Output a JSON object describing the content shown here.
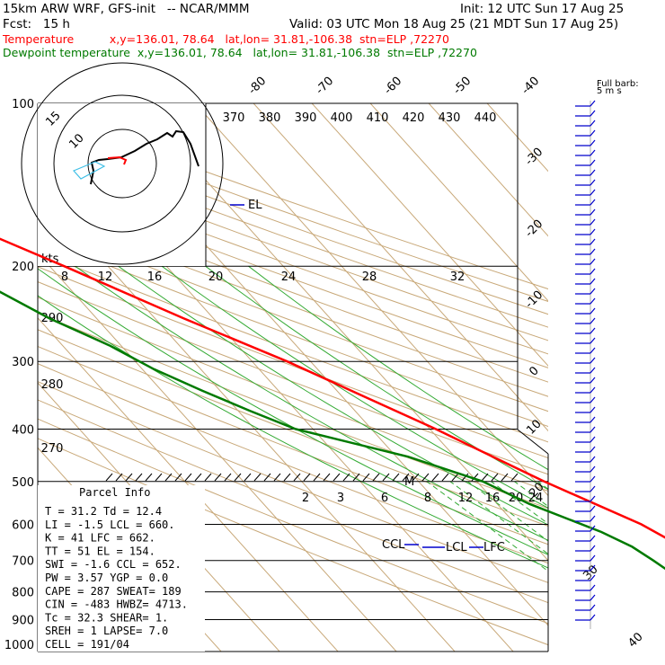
{
  "header": {
    "title": "15km ARW WRF, GFS-init   -- NCAR/MMM",
    "init": "Init: 12 UTC Sun 17 Aug 25",
    "fcst": "Fcst:   15 h",
    "valid": "Valid: 03 UTC Mon 18 Aug 25 (21 MDT Sun 17 Aug 25)",
    "temp_line": "Temperature          x,y=136.01, 78.64   lat,lon= 31.81,-106.38  stn=ELP ,72270",
    "dew_line": "Dewpoint temperature  x,y=136.01, 78.64   lat,lon= 31.81,-106.38  stn=ELP ,72270"
  },
  "barb_title": [
    "Full barb:",
    "5 m s"
  ],
  "hodograph_label": "kts",
  "hodograph_rings": [
    "15",
    "10"
  ],
  "parcel_info": {
    "title": "Parcel Info",
    "rows": [
      "T   =   31.2 Td =  12.4",
      "LI  =   -1.5 LCL =  660.",
      "K   =     41 LFC =  662.",
      "TT  =     51 EL  =  154.",
      "SWI =   -1.6 CCL =  652.",
      "PW  =   3.57 YGP =   0.0",
      "CAPE =   287 SWEAT=  189",
      "CIN  =  -483 HWBZ= 4713.",
      "Tc  =   32.3 SHEAR=    1.",
      "SREH =     1 LAPSE=  7.0",
      "CELL = 191/04"
    ]
  },
  "level_labels": {
    "el": "EL",
    "ccl": "CCL",
    "lcl": "LCL",
    "lfc": "LFC",
    "m": "M"
  },
  "theta_labels": [
    "370",
    "380",
    "390",
    "400",
    "410",
    "420",
    "430",
    "440"
  ],
  "theta_left_labels": [
    "290",
    "280",
    "270"
  ],
  "mix_ratio_top": [
    "8",
    "12",
    "16",
    "20",
    "24",
    "28",
    "32"
  ],
  "mix_ratio_low": [
    "2",
    "3",
    "4",
    "6",
    "8",
    "12",
    "16",
    "20",
    "24"
  ],
  "colors": {
    "temp": "#ff0000",
    "dew": "#007a00",
    "tan": "#c8a878",
    "blue": "#0000cc"
  },
  "chart_data": {
    "type": "line",
    "title": "",
    "y_axis": "pressure (hPa), logarithmic",
    "y_ticks": [
      100,
      200,
      300,
      400,
      500,
      600,
      700,
      800,
      900,
      1000
    ],
    "x_ticks_isotherms": [
      -80,
      -70,
      -60,
      -50,
      -40,
      -30,
      -20,
      -10,
      0,
      10,
      20,
      30,
      40
    ],
    "series": [
      {
        "name": "Temperature",
        "pressure": [
          880,
          800,
          700,
          660,
          600,
          500,
          450,
          400,
          350,
          300,
          250,
          200,
          170,
          150,
          130,
          110,
          100
        ],
        "temp_c": [
          31.2,
          25.5,
          17.5,
          15.0,
          11.5,
          1.5,
          -3.5,
          -9.0,
          -16.0,
          -24.0,
          -35.0,
          -47.5,
          -57.0,
          -63.0,
          -64.5,
          -63.0,
          -60.5
        ]
      },
      {
        "name": "Dewpoint temperature",
        "pressure": [
          880,
          800,
          700,
          660,
          620,
          550,
          500,
          450,
          400,
          370,
          340,
          310,
          280,
          250,
          220,
          200,
          170,
          140,
          110,
          100
        ],
        "temp_c": [
          12.4,
          11.0,
          8.0,
          6.5,
          3.5,
          -4.5,
          -9.0,
          -18.0,
          -33.0,
          -38.0,
          -43.0,
          -48.0,
          -52.0,
          -58.0,
          -63.0,
          -68.0,
          -75.0,
          -78.0,
          -80.0,
          -79.0
        ]
      }
    ]
  }
}
